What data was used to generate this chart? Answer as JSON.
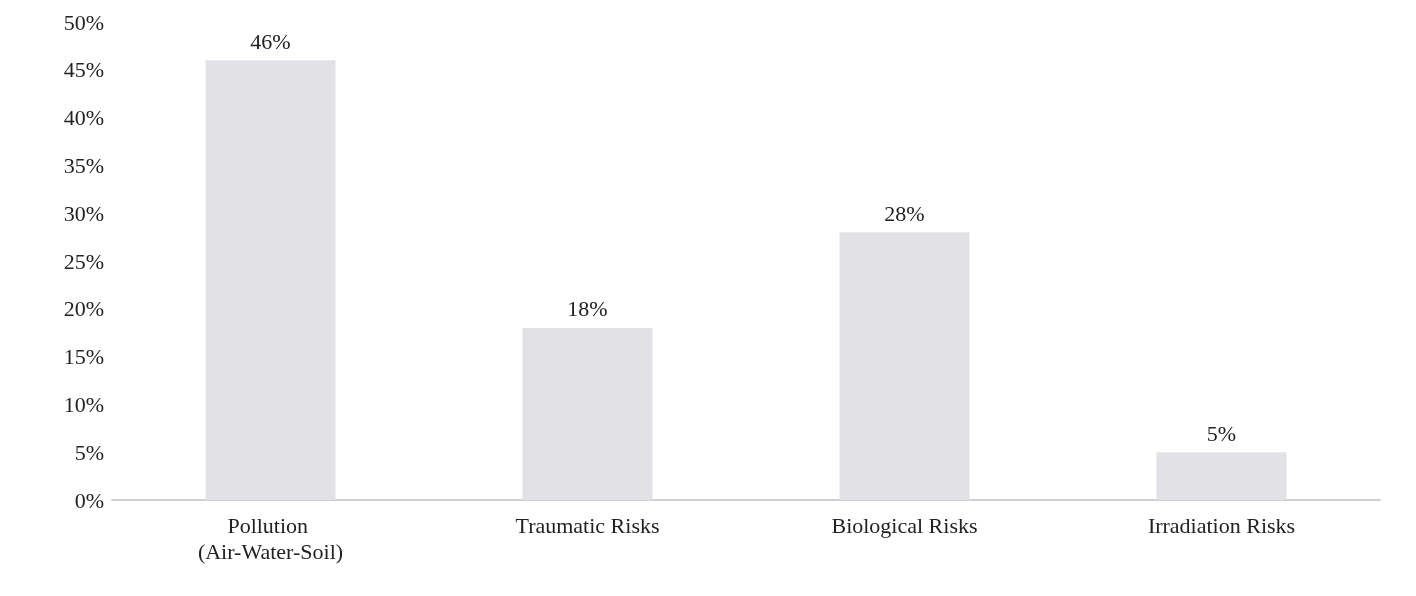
{
  "chart_data": {
    "type": "bar",
    "categories": [
      "Pollution (Air-Water-Soil)",
      "Traumatic Risks",
      "Biological Risks",
      "Irradiation Risks"
    ],
    "values": [
      46,
      18,
      28,
      5
    ],
    "value_labels": [
      "46%",
      "18%",
      "28%",
      "5%"
    ],
    "color": "#e2e2e6",
    "ylim": [
      0,
      50
    ],
    "yticks": [
      {
        "value": 0,
        "label": "0%"
      },
      {
        "value": 5,
        "label": "5%"
      },
      {
        "value": 10,
        "label": "10%"
      },
      {
        "value": 15,
        "label": "15%"
      },
      {
        "value": 20,
        "label": "20%"
      },
      {
        "value": 25,
        "label": "25%"
      },
      {
        "value": 30,
        "label": "30%"
      },
      {
        "value": 35,
        "label": "35%"
      },
      {
        "value": 40,
        "label": "40%"
      },
      {
        "value": 45,
        "label": "45%"
      },
      {
        "value": 50,
        "label": "50%"
      }
    ],
    "grid": false
  }
}
